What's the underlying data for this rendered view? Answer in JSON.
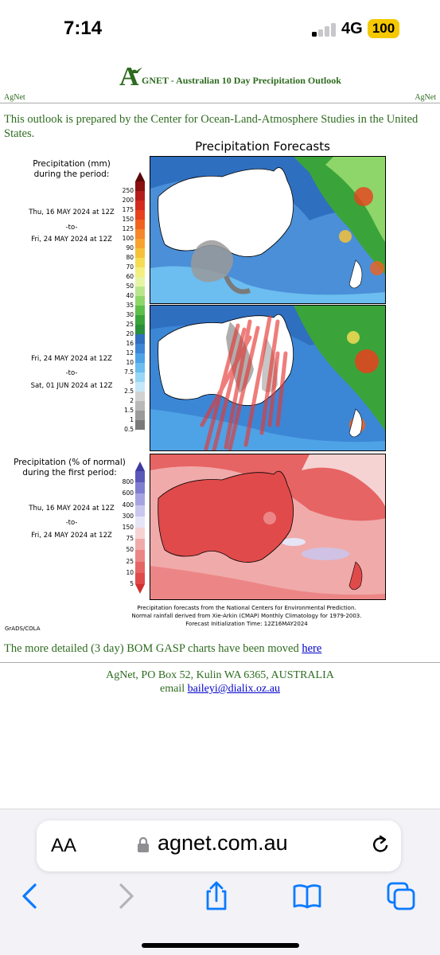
{
  "status_bar": {
    "time": "7:14",
    "network": "4G",
    "battery": "100"
  },
  "header": {
    "logo_letter": "A",
    "title": "GNET - Australian 10 Day Precipitation Outlook",
    "left_label": "AgNet",
    "right_label": "AgNet"
  },
  "intro": "This outlook is prepared by the Center for Ocean-Land-Atmosphere Studies in the United States.",
  "figure": {
    "title": "Precipitation Forecasts",
    "panel1": {
      "heading": "Precipitation (mm)\nduring the period:",
      "from": "Thu, 16 MAY 2024 at 12Z",
      "to_word": "-to-",
      "until": "Fri, 24 MAY 2024 at 12Z"
    },
    "panel2": {
      "from": "Fri, 24 MAY 2024 at 12Z",
      "to_word": "-to-",
      "until": "Sat, 01 JUN 2024 at 12Z"
    },
    "panel3": {
      "heading": "Precipitation (% of normal)\nduring the first period:",
      "from": "Thu, 16 MAY 2024 at 12Z",
      "to_word": "-to-",
      "until": "Fri, 24 MAY 2024 at 12Z"
    },
    "mm_scale": {
      "labels": [
        "250",
        "200",
        "175",
        "150",
        "125",
        "100",
        "90",
        "80",
        "70",
        "60",
        "50",
        "40",
        "35",
        "30",
        "25",
        "20",
        "16",
        "12",
        "10",
        "7.5",
        "5",
        "2.5",
        "2",
        "1.5",
        "1",
        "0.5"
      ],
      "colors": [
        "#8b1010",
        "#b51c1c",
        "#d42a1e",
        "#e8411e",
        "#f0621f",
        "#f5862a",
        "#f7a32e",
        "#f6c13a",
        "#f4dc55",
        "#f3ef7f",
        "#e6f5a4",
        "#b9e68c",
        "#8ed66a",
        "#5dbf4a",
        "#3aa43a",
        "#2a8f3c",
        "#2f6fc0",
        "#3c86d6",
        "#4ea2e6",
        "#6cbdf0",
        "#98d6f5",
        "#c4e8f8",
        "#d2d2d2",
        "#b8b8b8",
        "#9a9a9a",
        "#7a7a7a"
      ]
    },
    "pct_scale": {
      "labels": [
        "800",
        "600",
        "400",
        "300",
        "150",
        "75",
        "50",
        "25",
        "10",
        "5"
      ],
      "colors": [
        "#5b58b8",
        "#7f7dd0",
        "#a6a4e0",
        "#c9c7ee",
        "#e6e5f6",
        "#f6d3d3",
        "#f1aaaa",
        "#ec8686",
        "#e76464",
        "#e14a4a"
      ]
    },
    "credit_lines": [
      "Precipitation forecasts from the National Centers for Environmental Prediction.",
      "Normal rainfall derived from Xie-Arkin (CMAP) Monthly Climatology for 1979-2003.",
      "Forecast Initialization Time: 12Z16MAY2024"
    ],
    "grads_label": "GrADS/COLA"
  },
  "moved_text": "The more detailed (3 day) BOM GASP charts have been moved",
  "moved_link": "here",
  "footer": {
    "address": "AgNet, PO Box 52, Kulin WA 6365, AUSTRALIA",
    "email_prefix": "email",
    "email": "baileyi@dialix.oz.au"
  },
  "browser": {
    "text_size_label": "AA",
    "domain": "agnet.com.au"
  },
  "colors": {
    "site_green": "#2e6b1f",
    "link_blue": "#0000cc",
    "battery_yellow": "#f5c800",
    "ios_blue": "#0a7aff"
  }
}
